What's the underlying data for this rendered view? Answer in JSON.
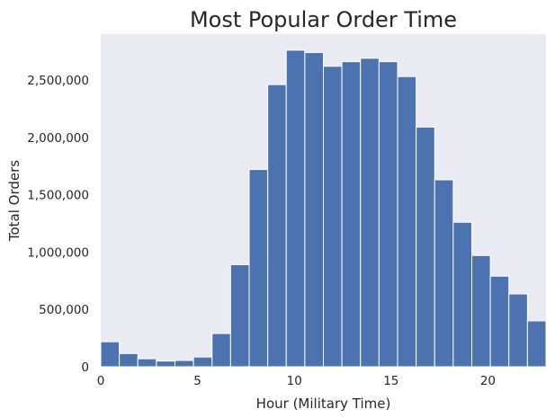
{
  "chart_data": {
    "type": "bar",
    "title": "Most Popular Order Time",
    "xlabel": "Hour (Military Time)",
    "ylabel": "Total Orders",
    "x_range": [
      0,
      23
    ],
    "bin_width": 0.958,
    "ylim": [
      0,
      2900000
    ],
    "grid": false,
    "legend": "none",
    "bar_color": "#4c72b0",
    "bar_edge_color": "#ffffff",
    "plot_background": "#eaeaf2",
    "xticks": [
      0,
      5,
      10,
      15,
      20
    ],
    "xtick_labels": [
      "0",
      "5",
      "10",
      "15",
      "20"
    ],
    "yticks": [
      0,
      500000,
      1000000,
      1500000,
      2000000,
      2500000
    ],
    "ytick_labels": [
      "0",
      "500,000",
      "1,000,000",
      "1,500,000",
      "2,000,000",
      "2,500,000"
    ],
    "bins": [
      {
        "start": 0.0,
        "end": 0.958,
        "value": 218000
      },
      {
        "start": 0.958,
        "end": 1.917,
        "value": 115000
      },
      {
        "start": 1.917,
        "end": 2.875,
        "value": 70000
      },
      {
        "start": 2.875,
        "end": 3.833,
        "value": 50000
      },
      {
        "start": 3.833,
        "end": 4.792,
        "value": 55000
      },
      {
        "start": 4.792,
        "end": 5.75,
        "value": 85000
      },
      {
        "start": 5.75,
        "end": 6.708,
        "value": 290000
      },
      {
        "start": 6.708,
        "end": 7.667,
        "value": 890000
      },
      {
        "start": 7.667,
        "end": 8.625,
        "value": 1720000
      },
      {
        "start": 8.625,
        "end": 9.583,
        "value": 2460000
      },
      {
        "start": 9.583,
        "end": 10.542,
        "value": 2760000
      },
      {
        "start": 10.542,
        "end": 11.5,
        "value": 2740000
      },
      {
        "start": 11.5,
        "end": 12.458,
        "value": 2620000
      },
      {
        "start": 12.458,
        "end": 13.417,
        "value": 2660000
      },
      {
        "start": 13.417,
        "end": 14.375,
        "value": 2690000
      },
      {
        "start": 14.375,
        "end": 15.333,
        "value": 2660000
      },
      {
        "start": 15.333,
        "end": 16.292,
        "value": 2530000
      },
      {
        "start": 16.292,
        "end": 17.25,
        "value": 2090000
      },
      {
        "start": 17.25,
        "end": 18.208,
        "value": 1630000
      },
      {
        "start": 18.208,
        "end": 19.167,
        "value": 1260000
      },
      {
        "start": 19.167,
        "end": 20.125,
        "value": 970000
      },
      {
        "start": 20.125,
        "end": 21.083,
        "value": 790000
      },
      {
        "start": 21.083,
        "end": 22.042,
        "value": 635000
      },
      {
        "start": 22.042,
        "end": 23.0,
        "value": 400000
      }
    ]
  }
}
